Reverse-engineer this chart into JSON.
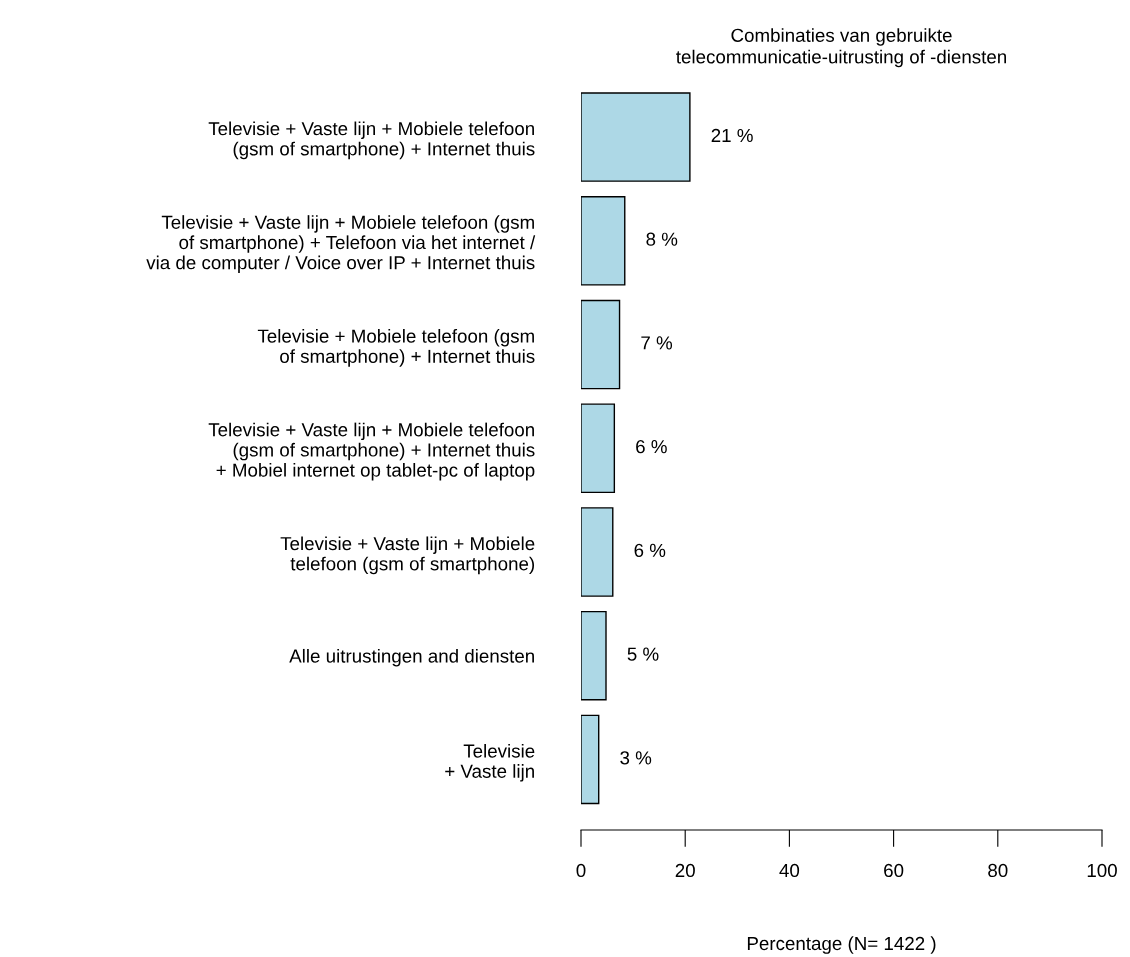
{
  "chart_data": {
    "type": "bar",
    "orientation": "horizontal",
    "title": "Combinaties van gebruikte\ntelecommunicatie-uitrusting of -diensten",
    "xlabel": "Percentage (N= 1422 )",
    "categories": [
      "Televisie + Vaste lijn + Mobiele telefoon\n(gsm of smartphone) + Internet thuis",
      "Televisie + Vaste lijn + Mobiele telefoon (gsm\nof smartphone) + Telefoon via het internet /\nvia de computer / Voice over IP + Internet thuis",
      "Televisie + Mobiele telefoon (gsm\nof smartphone) + Internet thuis",
      "Televisie + Vaste lijn + Mobiele telefoon\n(gsm of smartphone) + Internet thuis\n+ Mobiel internet op tablet-pc of laptop",
      "Televisie + Vaste lijn + Mobiele\ntelefoon (gsm of smartphone)",
      "Alle uitrustingen and diensten",
      "Televisie\n+ Vaste lijn"
    ],
    "values": [
      20.9,
      8.4,
      7.4,
      6.4,
      6.1,
      4.8,
      3.4
    ],
    "value_labels": [
      "21 %",
      "8 %",
      "7 %",
      "6 %",
      "6 %",
      "5 %",
      "3 %"
    ],
    "color": "#add8e6",
    "xlim": [
      0,
      100
    ],
    "xticks": [
      0,
      20,
      40,
      60,
      80,
      100
    ],
    "grid": false,
    "legend": false
  }
}
